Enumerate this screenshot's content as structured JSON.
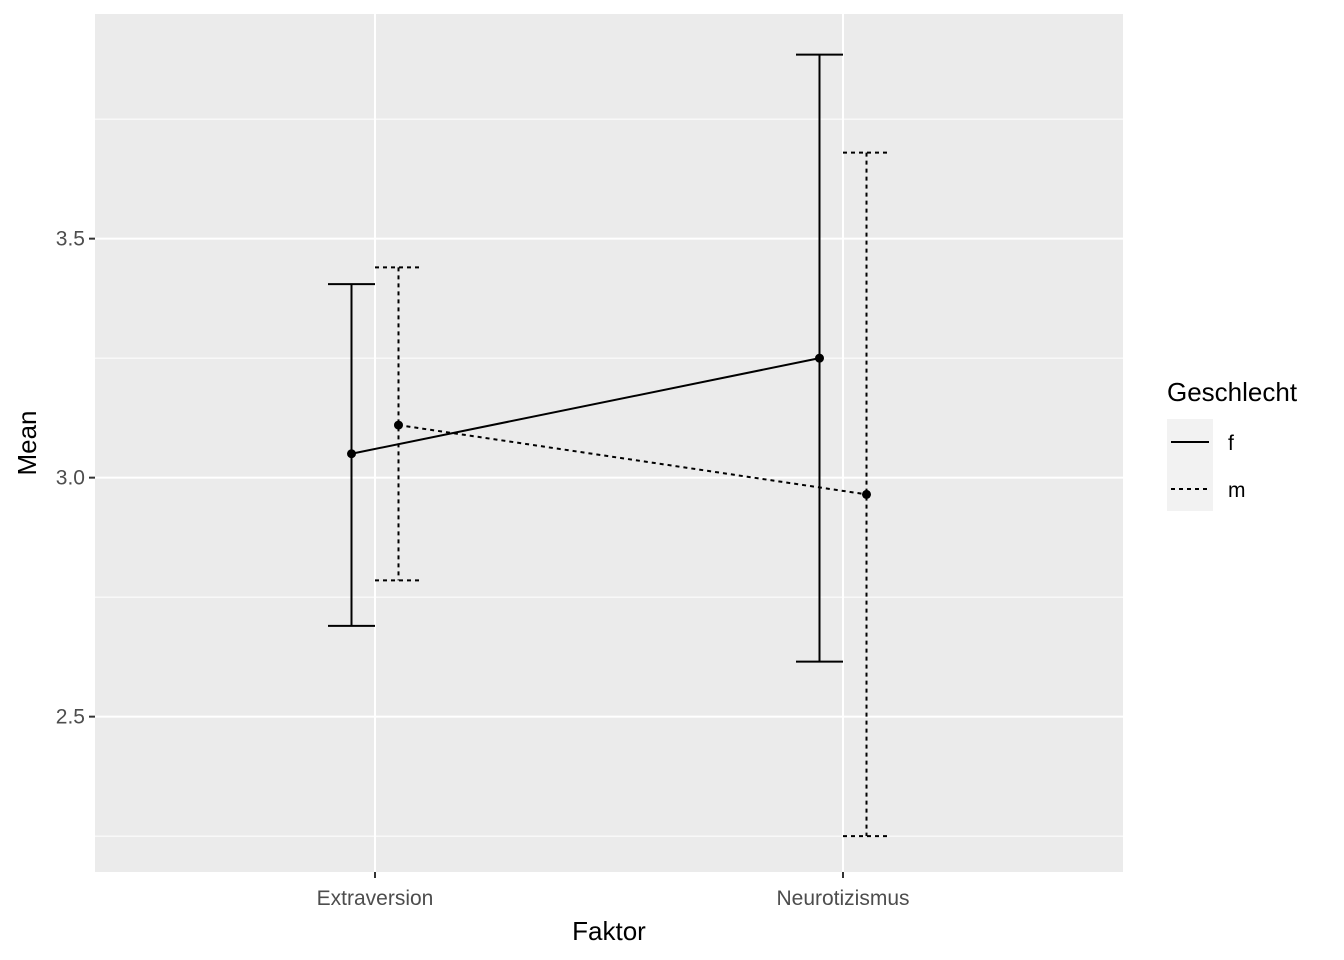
{
  "chart_data": {
    "type": "line",
    "title": "",
    "xlabel": "Faktor",
    "ylabel": "Mean",
    "categories": [
      "Extraversion",
      "Neurotizismus"
    ],
    "ylim": [
      2.175,
      3.97
    ],
    "yticks": [
      "2.5",
      "3.0",
      "3.5"
    ],
    "ytick_values": [
      2.5,
      3.0,
      3.5
    ],
    "grid": true,
    "legend": {
      "title": "Geschlecht",
      "position": "right"
    },
    "series": [
      {
        "name": "f",
        "linetype": "solid",
        "dodge": -1,
        "means": [
          3.05,
          3.25
        ],
        "lower": [
          2.69,
          2.615
        ],
        "upper": [
          3.405,
          3.885
        ]
      },
      {
        "name": "m",
        "linetype": "dashed",
        "dodge": 1,
        "means": [
          3.11,
          2.965
        ],
        "lower": [
          2.785,
          2.25
        ],
        "upper": [
          3.44,
          3.68
        ]
      }
    ],
    "colors": {
      "panel": "#ebebeb",
      "grid": "#ffffff",
      "line": "#000000",
      "tick_text": "#4d4d4d",
      "tick": "#333333"
    }
  }
}
